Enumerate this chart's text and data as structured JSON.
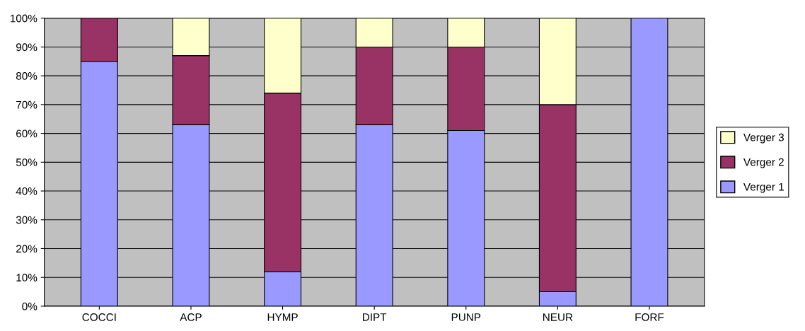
{
  "chart_data": {
    "type": "bar",
    "stacked": true,
    "categories": [
      "COCCI",
      "ACP",
      "HYMP",
      "DIPT",
      "PUNP",
      "NEUR",
      "FORF"
    ],
    "series": [
      {
        "name": "Verger 1",
        "color": "#9999ff",
        "values": [
          85,
          63,
          12,
          63,
          61,
          5,
          100
        ]
      },
      {
        "name": "Verger 2",
        "color": "#993366",
        "values": [
          15,
          24,
          62,
          27,
          29,
          65,
          null
        ]
      },
      {
        "name": "Verger 3",
        "color": "#ffffcc",
        "values": [
          null,
          13,
          26,
          10,
          10,
          30,
          null
        ]
      }
    ],
    "ylim": [
      0,
      100
    ],
    "yticks": [
      {
        "value": 0,
        "label": "0%"
      },
      {
        "value": 10,
        "label": "10%"
      },
      {
        "value": 20,
        "label": "20%"
      },
      {
        "value": 30,
        "label": "30%"
      },
      {
        "value": 40,
        "label": "40%"
      },
      {
        "value": 50,
        "label": "50%"
      },
      {
        "value": 60,
        "label": "60%"
      },
      {
        "value": 70,
        "label": "70%"
      },
      {
        "value": 80,
        "label": "80%"
      },
      {
        "value": 90,
        "label": "90%"
      },
      {
        "value": 100,
        "label": "100%"
      }
    ],
    "grid": "y",
    "legend": "right"
  }
}
